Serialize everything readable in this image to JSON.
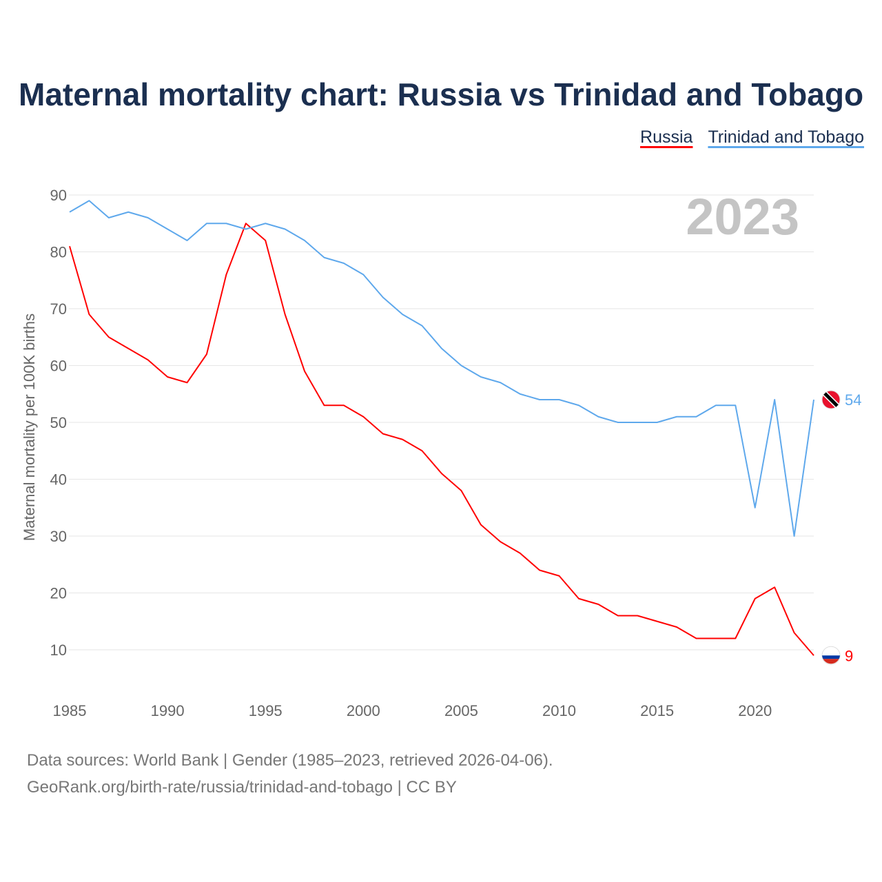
{
  "chart_data": {
    "type": "line",
    "title": "Maternal mortality chart: Russia vs Trinidad and Tobago",
    "xlabel": "",
    "ylabel": "Maternal mortality per 100K births",
    "year_watermark": "2023",
    "xlim": [
      1985,
      2023
    ],
    "ylim": [
      5,
      90
    ],
    "yticks": [
      10,
      20,
      30,
      40,
      50,
      60,
      70,
      80,
      90
    ],
    "xticks": [
      1985,
      1990,
      1995,
      2000,
      2005,
      2010,
      2015,
      2020
    ],
    "grid": true,
    "legend_position": "top-right",
    "x": [
      1985,
      1986,
      1987,
      1988,
      1989,
      1990,
      1991,
      1992,
      1993,
      1994,
      1995,
      1996,
      1997,
      1998,
      1999,
      2000,
      2001,
      2002,
      2003,
      2004,
      2005,
      2006,
      2007,
      2008,
      2009,
      2010,
      2011,
      2012,
      2013,
      2014,
      2015,
      2016,
      2017,
      2018,
      2019,
      2020,
      2021,
      2022,
      2023
    ],
    "series": [
      {
        "name": "Russia",
        "color": "#ff0000",
        "end_label": "9",
        "values": [
          81,
          69,
          65,
          63,
          61,
          58,
          57,
          62,
          76,
          85,
          82,
          69,
          59,
          53,
          53,
          51,
          48,
          47,
          45,
          41,
          38,
          32,
          29,
          27,
          24,
          23,
          19,
          18,
          16,
          16,
          15,
          14,
          12,
          12,
          12,
          19,
          21,
          13,
          9
        ]
      },
      {
        "name": "Trinidad and Tobago",
        "color": "#5ea8ec",
        "end_label": "54",
        "values": [
          87,
          89,
          86,
          87,
          86,
          84,
          82,
          85,
          85,
          84,
          85,
          84,
          82,
          79,
          78,
          76,
          72,
          69,
          67,
          63,
          60,
          58,
          57,
          55,
          54,
          54,
          53,
          51,
          50,
          50,
          50,
          51,
          51,
          53,
          53,
          35,
          54,
          30,
          54
        ]
      }
    ]
  },
  "footer": {
    "line1": "Data sources: World Bank | Gender (1985–2023, retrieved 2026-04-06).",
    "line2": "GeoRank.org/birth-rate/russia/trinidad-and-tobago | CC BY"
  }
}
